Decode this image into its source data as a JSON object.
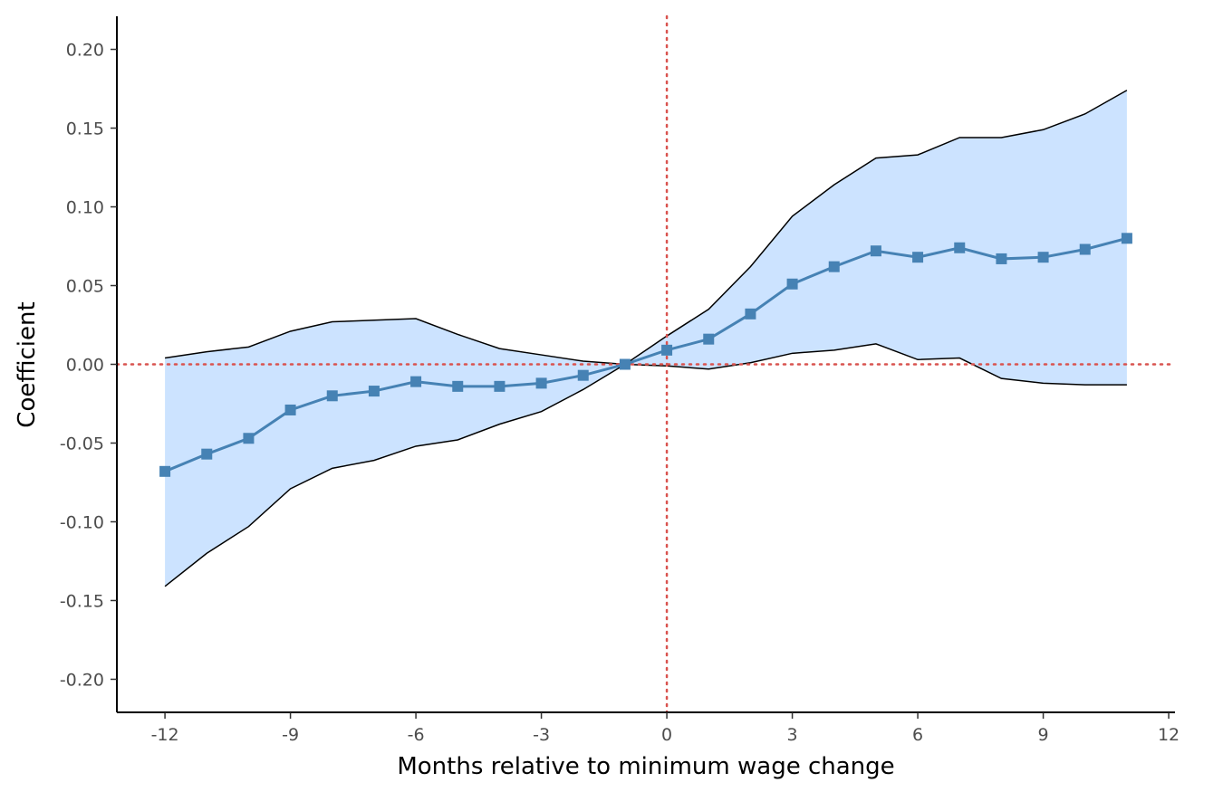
{
  "chart_data": {
    "type": "line",
    "title": "",
    "xlabel": "Months relative to minimum wage change",
    "ylabel": "Coefficient",
    "xlim": [
      -13.15,
      12.15
    ],
    "ylim": [
      -0.221,
      0.221
    ],
    "x_ticks": [
      -12,
      -9,
      -6,
      -3,
      0,
      3,
      6,
      9,
      12
    ],
    "x_tick_labels": [
      "-12",
      "-9",
      "-6",
      "-3",
      "0",
      "3",
      "6",
      "9",
      "12"
    ],
    "y_ticks": [
      -0.2,
      -0.15,
      -0.1,
      -0.05,
      0,
      0.05,
      0.1,
      0.15,
      0.2
    ],
    "y_tick_labels": [
      "-0.20",
      "-0.15",
      "-0.10",
      "-0.05",
      "0.00",
      "0.05",
      "0.10",
      "0.15",
      "0.20"
    ],
    "grid": false,
    "reference_lines": {
      "x": 0,
      "y": 0,
      "style": "dotted"
    },
    "x": [
      -12,
      -11,
      -10,
      -9,
      -8,
      -7,
      -6,
      -5,
      -4,
      -3,
      -2,
      -1,
      0,
      1,
      2,
      3,
      4,
      5,
      6,
      7,
      8,
      9,
      10,
      11
    ],
    "series": [
      {
        "values": [
          -0.068,
          -0.057,
          -0.047,
          -0.029,
          -0.02,
          -0.017,
          -0.011,
          -0.014,
          -0.014,
          -0.012,
          -0.007,
          0.0,
          0.009,
          0.016,
          0.032,
          0.051,
          0.062,
          0.072,
          0.068,
          0.074,
          0.067,
          0.068,
          0.073,
          0.08
        ],
        "upper": [
          0.004,
          0.008,
          0.011,
          0.021,
          0.027,
          0.028,
          0.029,
          0.019,
          0.01,
          0.006,
          0.002,
          0.0,
          0.018,
          0.035,
          0.062,
          0.094,
          0.114,
          0.131,
          0.133,
          0.144,
          0.144,
          0.149,
          0.159,
          0.174
        ],
        "lower": [
          -0.141,
          -0.12,
          -0.103,
          -0.079,
          -0.066,
          -0.061,
          -0.052,
          -0.048,
          -0.038,
          -0.03,
          -0.016,
          0.0,
          -0.001,
          -0.003,
          0.001,
          0.007,
          0.009,
          0.013,
          0.003,
          0.004,
          -0.009,
          -0.012,
          -0.013,
          -0.013
        ],
        "marker": "square"
      }
    ],
    "colors": {
      "line": "#4682b4",
      "ribbon": "#cce3ff",
      "ribbon_edge": "#000000",
      "reference": "#d9534f",
      "axis": "#000000"
    }
  }
}
